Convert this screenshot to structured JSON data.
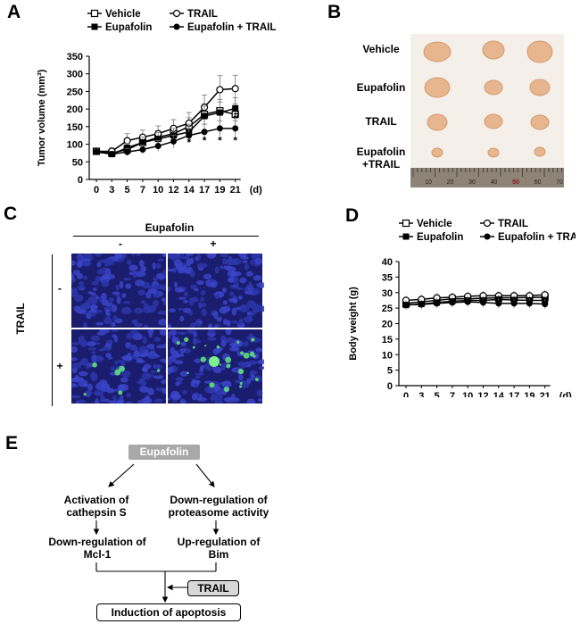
{
  "panels": {
    "a": "A",
    "b": "B",
    "c": "C",
    "d": "D",
    "e": "E"
  },
  "chart_data": [
    {
      "type": "line",
      "panel": "A",
      "ylabel": "Tumor volume (mm³)",
      "xlabel": "(d)",
      "x": [
        0,
        3,
        5,
        7,
        10,
        12,
        14,
        17,
        19,
        21
      ],
      "ylim": [
        0,
        350
      ],
      "yticks": [
        0,
        50,
        100,
        150,
        200,
        250,
        300,
        350
      ],
      "legend": [
        "Vehicle",
        "TRAIL",
        "Eupafolin",
        "Eupafolin + TRAIL"
      ],
      "series": [
        {
          "name": "Vehicle",
          "marker": "open-square",
          "values": [
            80,
            75,
            85,
            105,
            120,
            130,
            150,
            185,
            195,
            185
          ],
          "errors": [
            8,
            8,
            12,
            15,
            18,
            20,
            25,
            30,
            32,
            30
          ]
        },
        {
          "name": "TRAIL",
          "marker": "open-circle",
          "values": [
            80,
            80,
            110,
            120,
            130,
            145,
            160,
            205,
            255,
            258
          ],
          "errors": [
            8,
            10,
            20,
            20,
            22,
            25,
            30,
            35,
            40,
            38
          ]
        },
        {
          "name": "Eupafolin",
          "marker": "filled-square",
          "values": [
            80,
            72,
            90,
            105,
            115,
            125,
            135,
            180,
            190,
            202
          ],
          "errors": [
            8,
            8,
            12,
            15,
            18,
            20,
            22,
            28,
            30,
            30
          ]
        },
        {
          "name": "Eupafolin + TRAIL",
          "marker": "filled-circle",
          "values": [
            78,
            72,
            78,
            85,
            95,
            108,
            125,
            135,
            145,
            145
          ],
          "errors": [
            8,
            8,
            10,
            12,
            15,
            18,
            20,
            22,
            22,
            22
          ]
        }
      ],
      "significance": [
        {
          "x": 14,
          "label": "*"
        },
        {
          "x": 17,
          "label": "*"
        },
        {
          "x": 19,
          "label": "*"
        },
        {
          "x": 21,
          "label": "*"
        },
        {
          "x": 21,
          "label": "#"
        }
      ]
    },
    {
      "type": "line",
      "panel": "D",
      "ylabel": "Body weight (g)",
      "xlabel": "(d)",
      "x": [
        0,
        3,
        5,
        7,
        10,
        12,
        14,
        17,
        19,
        21
      ],
      "ylim": [
        0,
        40
      ],
      "yticks": [
        0,
        5,
        10,
        15,
        20,
        25,
        30,
        35,
        40
      ],
      "legend": [
        "Vehicle",
        "TRAIL",
        "Eupafolin",
        "Eupafolin + TRAIL"
      ],
      "series": [
        {
          "name": "Vehicle",
          "marker": "open-square",
          "values": [
            26.5,
            27,
            27.5,
            28,
            28,
            28.2,
            28.3,
            28.3,
            28.4,
            28.5
          ]
        },
        {
          "name": "TRAIL",
          "marker": "open-circle",
          "values": [
            27.5,
            27.8,
            28.3,
            28.5,
            28.8,
            29,
            29,
            29,
            29,
            29.3
          ]
        },
        {
          "name": "Eupafolin",
          "marker": "filled-square",
          "values": [
            26,
            26.3,
            26.8,
            27.2,
            27.5,
            27.5,
            27.8,
            27.6,
            27.5,
            27.5
          ]
        },
        {
          "name": "Eupafolin + TRAIL",
          "marker": "filled-circle",
          "values": [
            26,
            26.2,
            26.5,
            26.8,
            27,
            26.8,
            26.5,
            26.5,
            26.5,
            26.3
          ]
        }
      ]
    }
  ],
  "photo": {
    "rows": [
      "Vehicle",
      "Eupafolin",
      "TRAIL",
      "Eupafolin\n+TRAIL"
    ],
    "ruler_labels": [
      "10",
      "20",
      "30",
      "40",
      "50",
      "60",
      "70"
    ]
  },
  "microscopy": {
    "col_header": "Eupafolin",
    "col_minus": "-",
    "col_plus": "+",
    "row_header": "TRAIL",
    "row_minus": "-",
    "row_plus": "+"
  },
  "diagram": {
    "top": "Eupafolin",
    "left1": "Activation of\ncathepsin S",
    "left2": "Down-regulation of\nMcl-1",
    "right1": "Down-regulation of\nproteasome activity",
    "right2": "Up-regulation of\nBim",
    "trail": "TRAIL",
    "bottom": "Induction of apoptosis"
  },
  "colors": {
    "photo_bg": "#f4efe8",
    "tumor": "#e6b38c",
    "micro_bg": "#1a1f7a",
    "gfp": "#5fe07a"
  }
}
